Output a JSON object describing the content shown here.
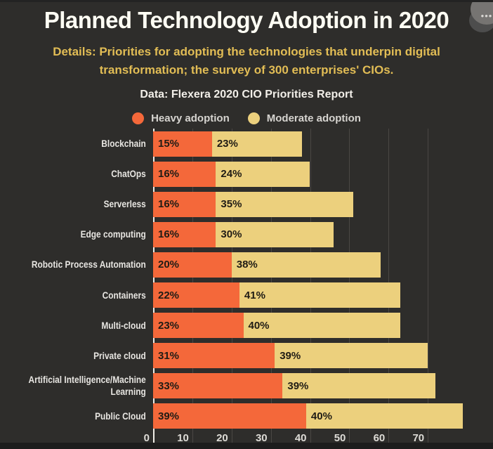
{
  "window": {
    "more_button_icon": "•••"
  },
  "header": {
    "title": "Planned Technology Adoption in 2020",
    "subtitle_lines": [
      "Details: Priorities for adopting the technologies that underpin digital",
      "transformation; the survey of 300 enterprises' CIOs."
    ],
    "source": "Data: Flexera 2020 CIO Priorities Report"
  },
  "chart_data": {
    "type": "bar",
    "orientation": "horizontal",
    "stacked": true,
    "title": "Planned Technology Adoption in 2020",
    "categories": [
      "Blockchain",
      "ChatOps",
      "Serverless",
      "Edge computing",
      "Robotic Process Automation",
      "Containers",
      "Multi-cloud",
      "Private cloud",
      "Artificial Intelligence/Machine Learning",
      "Public Cloud"
    ],
    "categories_display": [
      "Blockchain",
      "ChatOps",
      "Serverless",
      "Edge computing",
      "Robotic Process Automation",
      "Containers",
      "Multi-cloud",
      "Private cloud",
      "Artificial Intelligence/Machine\nLearning",
      "Public Cloud"
    ],
    "series": [
      {
        "name": "Heavy adoption",
        "color": "#f4683a",
        "values": [
          15,
          16,
          16,
          16,
          20,
          22,
          23,
          31,
          33,
          39
        ]
      },
      {
        "name": "Moderate adoption",
        "color": "#ecd07d",
        "values": [
          23,
          24,
          35,
          30,
          38,
          41,
          40,
          39,
          39,
          40
        ]
      }
    ],
    "value_suffix": "%",
    "x_ticks": [
      0,
      10,
      20,
      30,
      40,
      50,
      60,
      70
    ],
    "xlim": [
      0,
      80
    ],
    "grid": true,
    "legend_position": "top",
    "xlabel": "",
    "ylabel": ""
  },
  "colors": {
    "background": "#2e2d2b",
    "footer": "#1d1d1d",
    "title": "#fffef4",
    "subtitle": "#e2bd55",
    "source": "#f2efe9",
    "legend_text": "#d6d4d0",
    "category_label": "#e8e6e2",
    "axis_label": "#dedcd7",
    "value_label": "#201c15",
    "gridline": "#4a4744",
    "axis_line": "#efede7",
    "heavy": "#f4683a",
    "moderate": "#ecd07d"
  }
}
